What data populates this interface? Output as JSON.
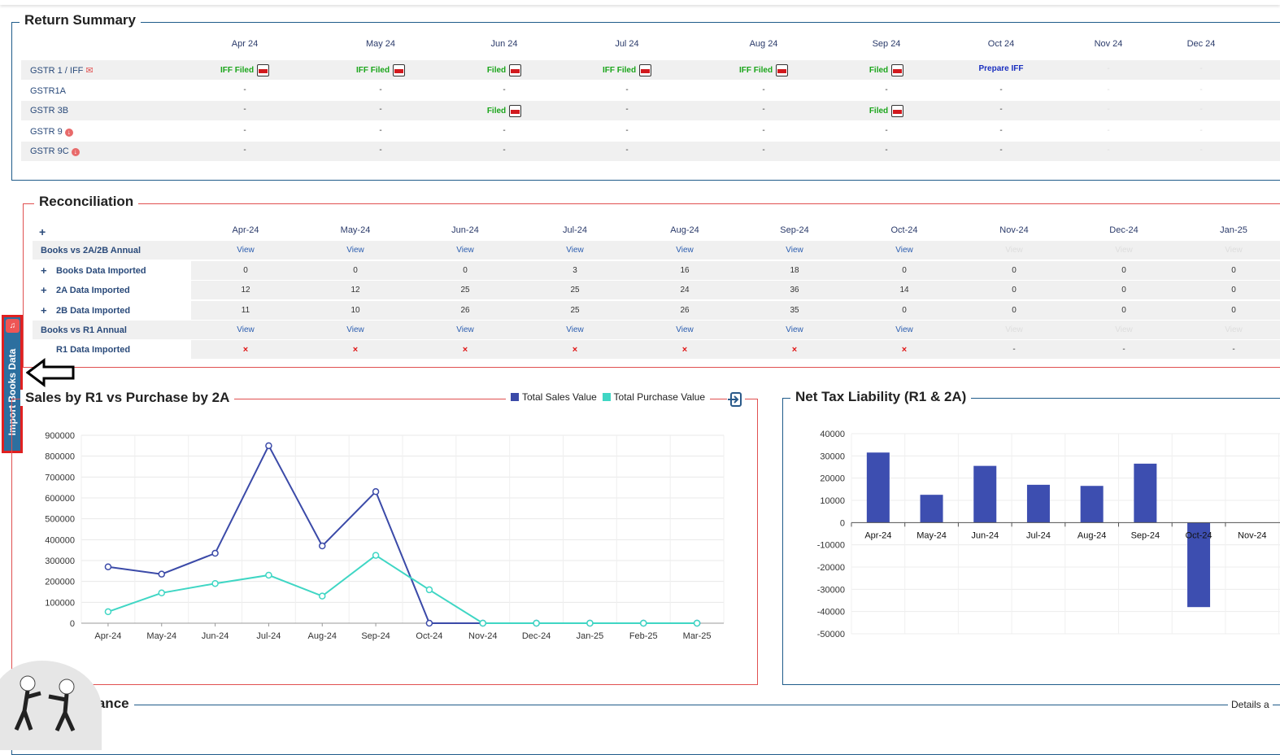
{
  "return_summary": {
    "title": "Return Summary",
    "months": [
      "Apr 24",
      "May 24",
      "Jun 24",
      "Jul 24",
      "Aug 24",
      "Sep 24",
      "Oct 24",
      "Nov 24",
      "Dec 24"
    ],
    "rows": [
      {
        "label": "GSTR 1 / IFF",
        "icon": "envelope-icon",
        "cells": [
          "IFF Filed",
          "IFF Filed",
          "Filed",
          "IFF Filed",
          "IFF Filed",
          "Filed",
          "Prepare IFF",
          "-",
          "-"
        ]
      },
      {
        "label": "GSTR1A",
        "icon": "",
        "cells": [
          "-",
          "-",
          "-",
          "-",
          "-",
          "-",
          "-",
          "-",
          "-"
        ]
      },
      {
        "label": "GSTR 3B",
        "icon": "",
        "cells": [
          "-",
          "-",
          "Filed",
          "-",
          "-",
          "Filed",
          "-",
          "-",
          "-"
        ]
      },
      {
        "label": "GSTR 9",
        "icon": "download-icon",
        "cells": [
          "-",
          "-",
          "-",
          "-",
          "-",
          "-",
          "-",
          "-",
          "-"
        ]
      },
      {
        "label": "GSTR 9C",
        "icon": "download-icon",
        "cells": [
          "-",
          "-",
          "-",
          "-",
          "-",
          "-",
          "-",
          "-",
          "-"
        ]
      }
    ]
  },
  "reconciliation": {
    "title": "Reconciliation",
    "plus": "+",
    "months": [
      "Apr-24",
      "May-24",
      "Jun-24",
      "Jul-24",
      "Aug-24",
      "Sep-24",
      "Oct-24",
      "Nov-24",
      "Dec-24",
      "Jan-25"
    ],
    "rows": [
      {
        "label": "Books vs 2A/2B Annual",
        "expand": false,
        "indent": false,
        "cells": [
          "View",
          "View",
          "View",
          "View",
          "View",
          "View",
          "View",
          "View",
          "View",
          "View"
        ]
      },
      {
        "label": "Books Data Imported",
        "expand": true,
        "indent": true,
        "cells": [
          "0",
          "0",
          "0",
          "3",
          "16",
          "18",
          "0",
          "0",
          "0",
          "0"
        ]
      },
      {
        "label": "2A Data Imported",
        "expand": true,
        "indent": true,
        "cells": [
          "12",
          "12",
          "25",
          "25",
          "24",
          "36",
          "14",
          "0",
          "0",
          "0"
        ]
      },
      {
        "label": "2B Data Imported",
        "expand": true,
        "indent": true,
        "cells": [
          "11",
          "10",
          "26",
          "25",
          "26",
          "35",
          "0",
          "0",
          "0",
          "0"
        ]
      },
      {
        "label": "Books vs R1 Annual",
        "expand": false,
        "indent": false,
        "cells": [
          "View",
          "View",
          "View",
          "View",
          "View",
          "View",
          "View",
          "View",
          "View",
          "View"
        ]
      },
      {
        "label": "R1 Data Imported",
        "expand": false,
        "indent": true,
        "cells": [
          "×",
          "×",
          "×",
          "×",
          "×",
          "×",
          "×",
          "-",
          "-",
          "-"
        ]
      }
    ]
  },
  "side_tab": {
    "label": "Import Books Data"
  },
  "sales_chart": {
    "title": "Sales by R1 vs Purchase by 2A",
    "legend": [
      "Total Sales Value",
      "Total Purchase Value"
    ]
  },
  "tax_chart": {
    "title": "Net Tax Liability (R1 & 2A)"
  },
  "ledger": {
    "title": "Ledger Balance",
    "details_label": "Details a"
  },
  "colors": {
    "sales": "#3b4aa8",
    "purchase": "#3fd6c4",
    "bar": "#3d4eb0",
    "accent_red": "#e02020",
    "border_blue": "#1f5b8a"
  },
  "chart_data": [
    {
      "type": "line",
      "title": "Sales by R1 vs Purchase by 2A",
      "categories": [
        "Apr-24",
        "May-24",
        "Jun-24",
        "Jul-24",
        "Aug-24",
        "Sep-24",
        "Oct-24",
        "Nov-24",
        "Dec-24",
        "Jan-25",
        "Feb-25",
        "Mar-25"
      ],
      "series": [
        {
          "name": "Total Sales Value",
          "values": [
            270000,
            235000,
            335000,
            850000,
            370000,
            630000,
            0,
            0,
            0,
            0,
            0,
            0
          ]
        },
        {
          "name": "Total Purchase Value",
          "values": [
            55000,
            145000,
            190000,
            230000,
            130000,
            325000,
            160000,
            0,
            0,
            0,
            0,
            0
          ]
        }
      ],
      "yticks": [
        "0",
        "100000",
        "200000",
        "300000",
        "400000",
        "500000",
        "600000",
        "700000",
        "800000",
        "900000"
      ],
      "ylim": [
        0,
        900000
      ],
      "grid": true,
      "legend": "top-right"
    },
    {
      "type": "bar",
      "title": "Net Tax Liability (R1 & 2A)",
      "categories": [
        "Apr-24",
        "May-24",
        "Jun-24",
        "Jul-24",
        "Aug-24",
        "Sep-24",
        "Oct-24",
        "Nov-24"
      ],
      "values": [
        31500,
        12500,
        25500,
        17000,
        16500,
        26500,
        -38000,
        0
      ],
      "yticks": [
        "40000",
        "30000",
        "20000",
        "10000",
        "0",
        "-10000",
        "-20000",
        "-30000",
        "-40000",
        "-50000"
      ],
      "ylim": [
        -50000,
        40000
      ],
      "grid": true
    }
  ]
}
